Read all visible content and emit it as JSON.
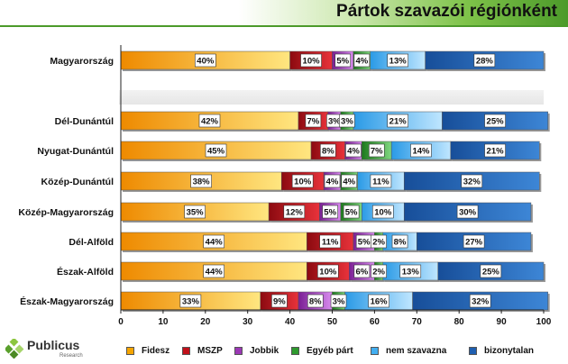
{
  "page": {
    "title": "Pártok szavazói régiónként",
    "logo": {
      "name": "Publicus",
      "sub": "Research"
    }
  },
  "chart_data": {
    "type": "bar",
    "orientation": "horizontal",
    "stacked": true,
    "title": "Pártok szavazói régiónként",
    "categories": [
      "Magyarország",
      "",
      "Dél-Dunántúl",
      "Nyugat-Dunántúl",
      "Közép-Dunántúl",
      "Közép-Magyarország",
      "Dél-Alföld",
      "Észak-Alföld",
      "Észak-Magyarország"
    ],
    "series": [
      {
        "name": "Fidesz",
        "color": "#f5a500",
        "values": [
          40,
          null,
          42,
          45,
          38,
          35,
          44,
          44,
          33
        ]
      },
      {
        "name": "MSZP",
        "color": "#c1101a",
        "values": [
          10,
          null,
          7,
          8,
          10,
          12,
          11,
          10,
          9
        ]
      },
      {
        "name": "Jobbik",
        "color": "#9b38b5",
        "values": [
          5,
          null,
          3,
          4,
          4,
          5,
          5,
          6,
          8
        ]
      },
      {
        "name": "Egyéb párt",
        "color": "#2e9a2e",
        "values": [
          4,
          null,
          3,
          7,
          4,
          5,
          2,
          2,
          3
        ]
      },
      {
        "name": "nem szavazna",
        "color": "#42aef0",
        "values": [
          13,
          null,
          21,
          14,
          11,
          10,
          8,
          13,
          16
        ]
      },
      {
        "name": "bizonytalan",
        "color": "#1f5fb0",
        "values": [
          28,
          null,
          25,
          21,
          32,
          30,
          27,
          25,
          32
        ]
      }
    ],
    "data_labels": [
      [
        "40%",
        "10%",
        "5%",
        "4%",
        "13%",
        "28%"
      ],
      null,
      [
        "42%",
        "7%",
        "3%",
        "3%",
        "21%",
        "25%"
      ],
      [
        "45%",
        "8%",
        "4%",
        "7%",
        "14%",
        "21%"
      ],
      [
        "38%",
        "10%",
        "4%",
        "4%",
        "11%",
        "32%"
      ],
      [
        "35%",
        "12%",
        "5%",
        "5%",
        "10%",
        "30%"
      ],
      [
        "44%",
        "11%",
        "5%",
        "2%",
        "8%",
        "27%"
      ],
      [
        "44%",
        "10%",
        "6%",
        "2%",
        "13%",
        "25%"
      ],
      [
        "33%",
        "9%",
        "8%",
        "3%",
        "16%",
        "32%"
      ]
    ],
    "xlim": [
      0,
      100
    ],
    "xticks": [
      "0",
      "10",
      "20",
      "30",
      "40",
      "50",
      "60",
      "70",
      "80",
      "90",
      "100"
    ],
    "grid": false,
    "legend_position": "bottom"
  }
}
